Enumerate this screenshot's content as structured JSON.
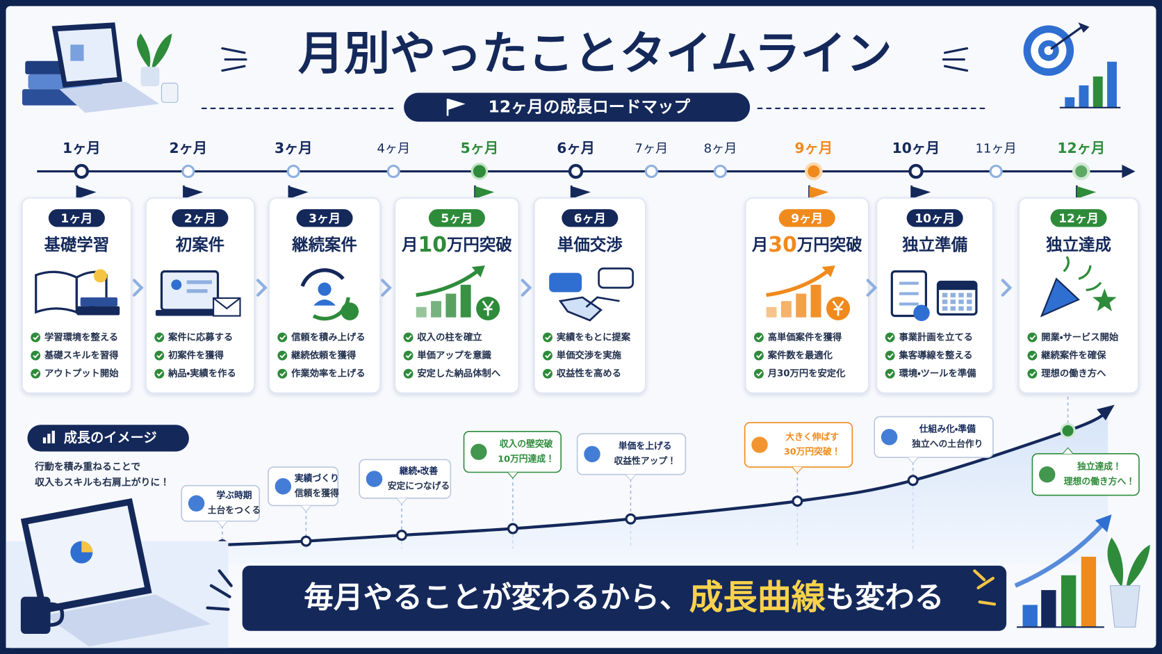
{
  "title": "月別やったことタイムライン",
  "subtitle": "12ヶ月の成長ロードマップ",
  "timeline": {
    "months": [
      "1ヶ月",
      "2ヶ月",
      "3ヶ月",
      "4ヶ月",
      "5ヶ月",
      "6ヶ月",
      "7ヶ月",
      "8ヶ月",
      "9ヶ月",
      "10ヶ月",
      "11ヶ月",
      "12ヶ月"
    ]
  },
  "cards": [
    {
      "month": "1ヶ月",
      "title": "基礎学習",
      "items": [
        "学習環境を整える",
        "基礎スキルを習得",
        "アウトプット開始"
      ]
    },
    {
      "month": "2ヶ月",
      "title": "初案件",
      "items": [
        "案件に応募する",
        "初案件を獲得",
        "納品・実績を作る"
      ]
    },
    {
      "month": "3ヶ月",
      "title": "継続案件",
      "items": [
        "信頼を積み上げる",
        "継続依頼を獲得",
        "作業効率を上げる"
      ]
    },
    {
      "month": "5ヶ月",
      "title": "月10万円突破",
      "items": [
        "収入の柱を確立",
        "単価アップを意識",
        "安定した納品体制へ"
      ]
    },
    {
      "month": "6ヶ月",
      "title": "単価交渉",
      "items": [
        "実績をもとに提案",
        "単価交渉を実施",
        "収益性を高める"
      ]
    },
    {
      "month": "9ヶ月",
      "title": "月30万円突破",
      "items": [
        "高単価案件を獲得",
        "案件数を最適化",
        "月30万円を安定化"
      ]
    },
    {
      "month": "10ヶ月",
      "title": "独立準備",
      "items": [
        "事業計画を立てる",
        "集客導線を整える",
        "環境・ツールを準備"
      ]
    },
    {
      "month": "12ヶ月",
      "title": "独立達成",
      "items": [
        "開業・サービス開始",
        "継続案件を確保",
        "理想の働き方へ"
      ]
    }
  ],
  "growth": {
    "label": "成長のイメージ",
    "description": [
      "行動を積み重ねることで",
      "収入もスキルも右肩上がりに！"
    ],
    "callouts": [
      {
        "lines": [
          "学ぶ時期",
          "土台をつくる"
        ]
      },
      {
        "lines": [
          "実績づくり",
          "信頼を獲得"
        ]
      },
      {
        "lines": [
          "継続・改善",
          "安定につなげる"
        ]
      },
      {
        "lines": [
          "収入の壁突破",
          "10万円達成！"
        ]
      },
      {
        "lines": [
          "単価を上げる",
          "収益性アップ！"
        ]
      },
      {
        "lines": [
          "大きく伸ばす",
          "30万円突破！"
        ]
      },
      {
        "lines": [
          "仕組み化・準備",
          "独立への土台作り"
        ]
      },
      {
        "lines": [
          "独立達成！",
          "理想の働き方へ！"
        ]
      }
    ]
  },
  "banner": [
    "毎月やることが変わるから、",
    "成長曲線",
    "も変わる"
  ]
}
